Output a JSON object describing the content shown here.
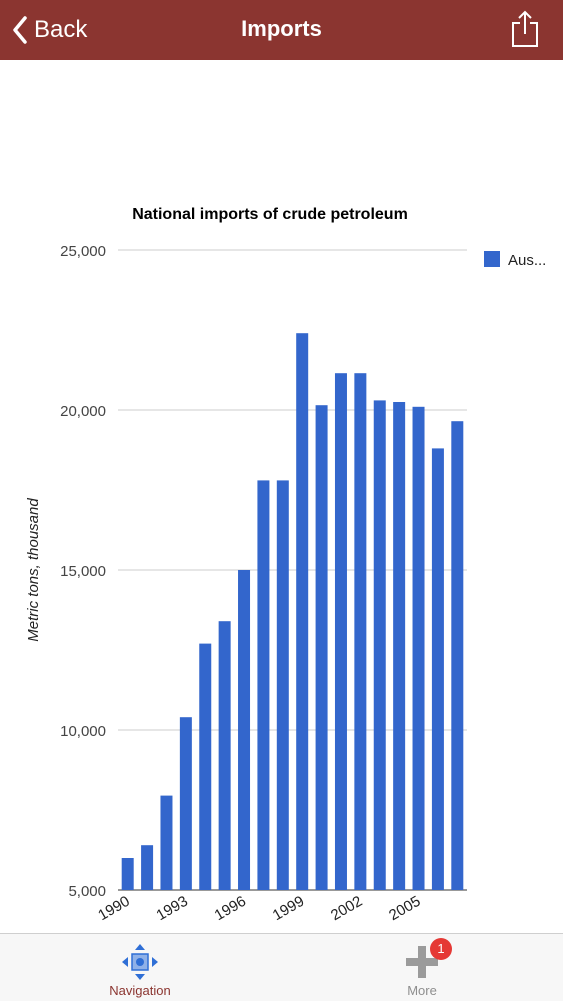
{
  "header": {
    "back_label": "Back",
    "title": "Imports"
  },
  "chart_data": {
    "type": "bar",
    "title": "National imports of crude petroleum",
    "ylabel": "Metric tons, thousand",
    "xlabel": "",
    "ylim": [
      5000,
      25000
    ],
    "yticks": [
      5000,
      10000,
      15000,
      20000,
      25000
    ],
    "ytick_labels": [
      "5,000",
      "10,000",
      "15,000",
      "20,000",
      "25,000"
    ],
    "grid": true,
    "legend_position": "top-right",
    "categories": [
      "1990",
      "1991",
      "1992",
      "1993",
      "1994",
      "1995",
      "1996",
      "1997",
      "1998",
      "1999",
      "2000",
      "2001",
      "2002",
      "2003",
      "2004",
      "2005",
      "2006",
      "2007"
    ],
    "xtick_labels": [
      "1990",
      "1993",
      "1996",
      "1999",
      "2002",
      "2005"
    ],
    "series": [
      {
        "name": "Aus...",
        "color": "#3366cc",
        "values": [
          6000,
          6400,
          7950,
          10400,
          12700,
          13400,
          15000,
          17800,
          17800,
          22400,
          20150,
          21150,
          21150,
          20300,
          20250,
          20100,
          18800,
          19650
        ]
      }
    ]
  },
  "tabbar": {
    "navigation_label": "Navigation",
    "navigation_icon": "navigation-arrows-icon",
    "more_label": "More",
    "more_icon": "plus-icon",
    "more_badge": "1"
  },
  "colors": {
    "header_bg": "#8b3530",
    "bar": "#3366cc",
    "badge": "#e53935"
  }
}
